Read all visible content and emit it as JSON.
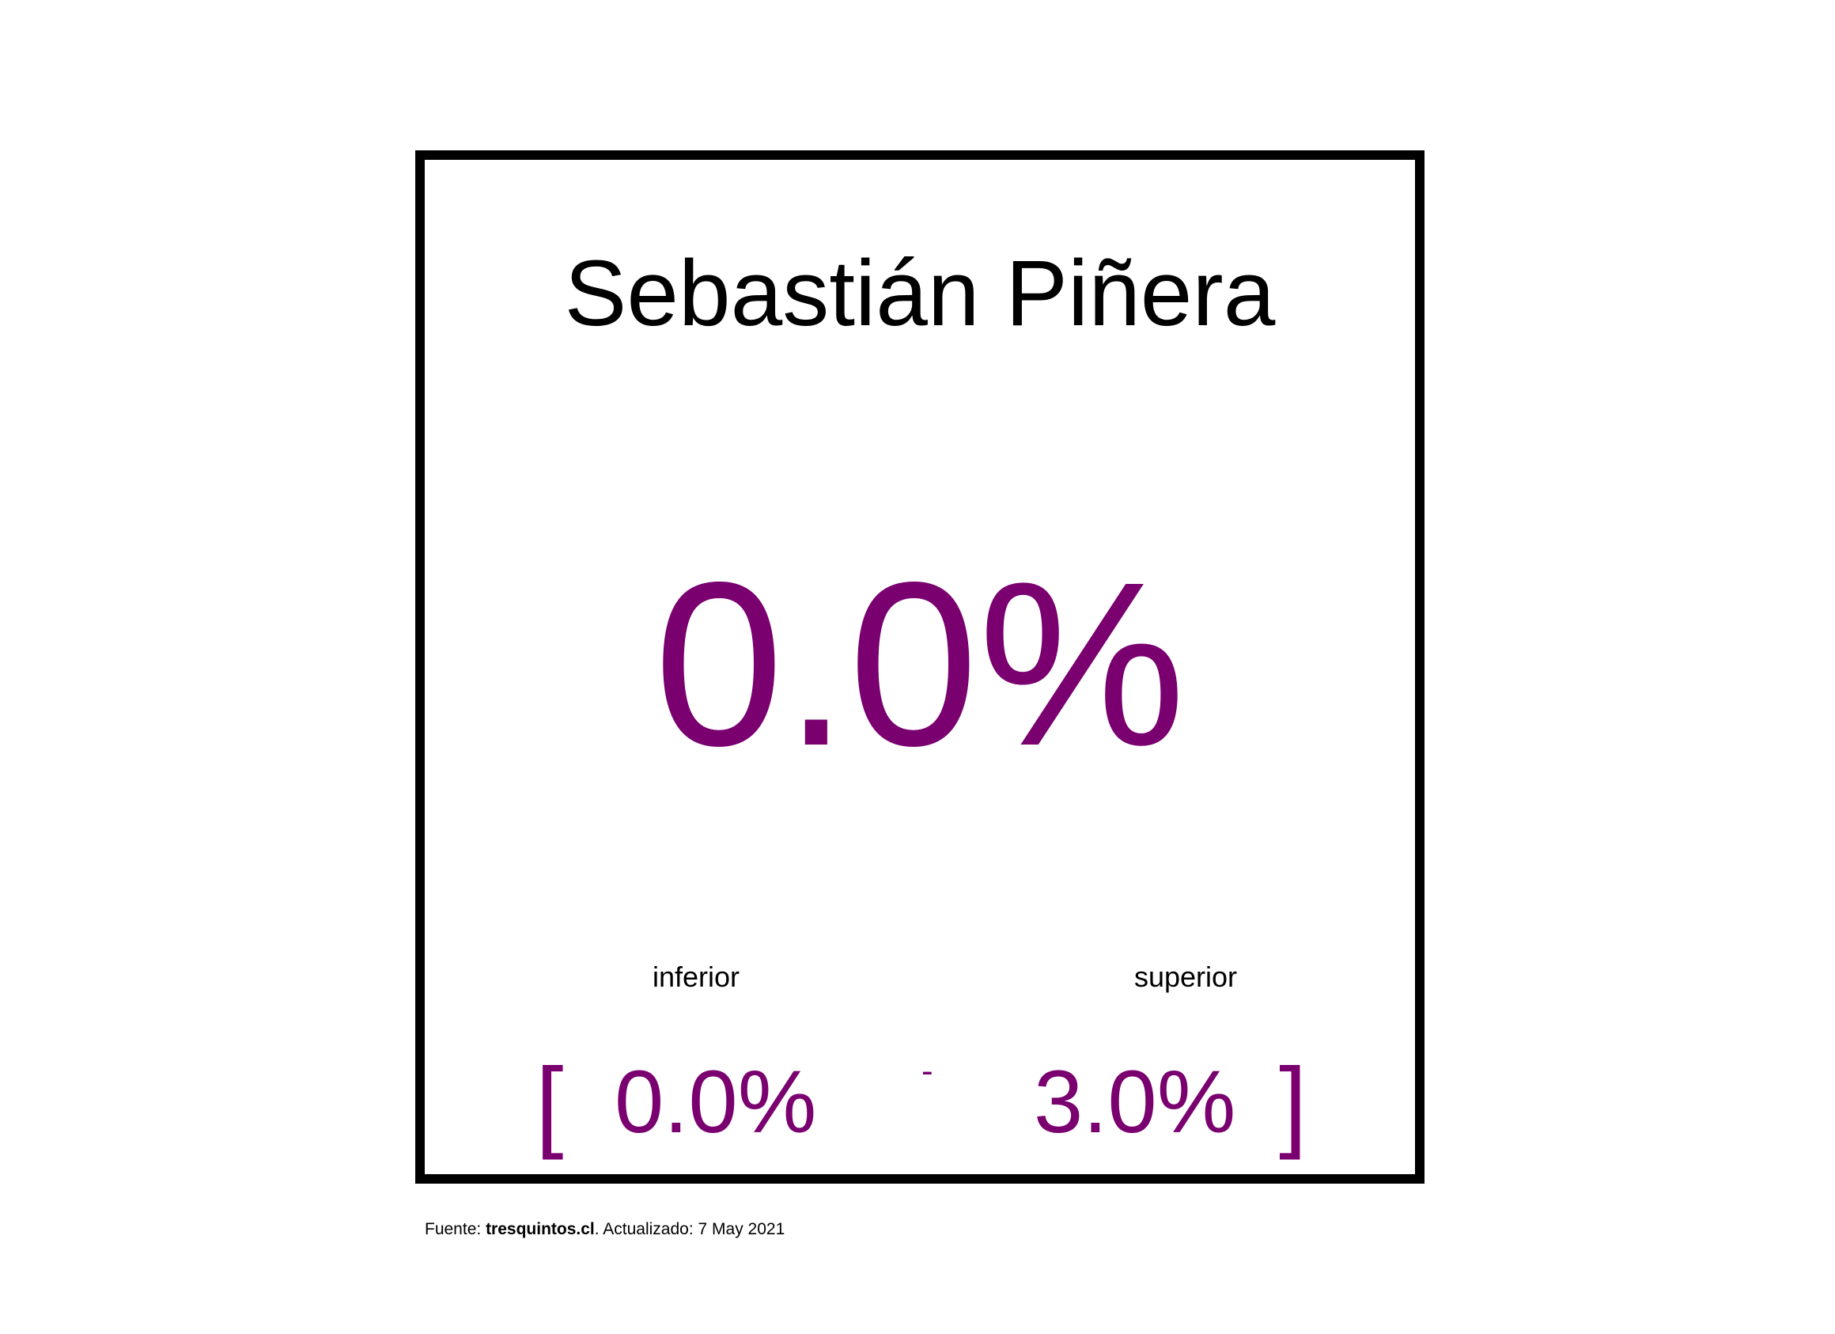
{
  "candidate": {
    "name": "Sebastián Piñera",
    "estimate": "0.0%"
  },
  "interval": {
    "lower_label": "inferior",
    "upper_label": "superior",
    "open_bracket": "[",
    "lower_value": "0.0%",
    "separator": "-",
    "upper_value": "3.0%",
    "close_bracket": "]"
  },
  "footer": {
    "prefix": "Fuente: ",
    "source": "tresquintos.cl",
    "suffix": ". Actualizado: 7 May 2021"
  },
  "colors": {
    "accent": "#7a0070",
    "frame": "#000000"
  }
}
